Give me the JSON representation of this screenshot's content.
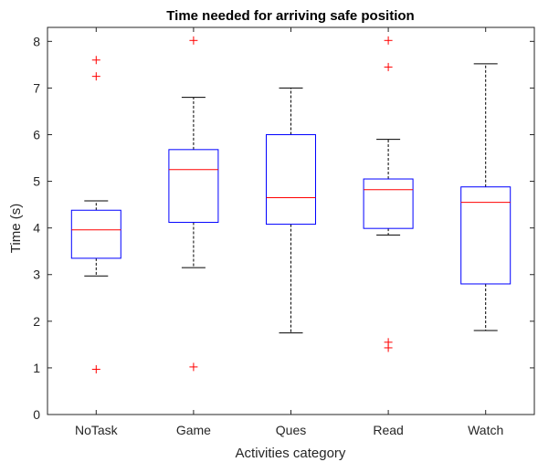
{
  "chart_data": {
    "type": "box",
    "title": "Time needed for arriving safe position",
    "xlabel": "Activities category",
    "ylabel": "Time (s)",
    "ylim": [
      0,
      8.3
    ],
    "yticks": [
      0,
      1,
      2,
      3,
      4,
      5,
      6,
      7,
      8
    ],
    "categories": [
      "NoTask",
      "Game",
      "Ques",
      "Read",
      "Watch"
    ],
    "boxes": [
      {
        "category": "NoTask",
        "whisker_low": 2.97,
        "q1": 3.35,
        "median": 3.96,
        "q3": 4.38,
        "whisker_high": 4.58,
        "outliers": [
          7.6,
          7.25,
          0.97
        ]
      },
      {
        "category": "Game",
        "whisker_low": 3.15,
        "q1": 4.12,
        "median": 5.25,
        "q3": 5.68,
        "whisker_high": 6.8,
        "outliers": [
          8.02,
          1.02
        ]
      },
      {
        "category": "Ques",
        "whisker_low": 1.75,
        "q1": 4.08,
        "median": 4.65,
        "q3": 6.0,
        "whisker_high": 7.0,
        "outliers": []
      },
      {
        "category": "Read",
        "whisker_low": 3.85,
        "q1": 3.99,
        "median": 4.82,
        "q3": 5.05,
        "whisker_high": 5.9,
        "outliers": [
          8.02,
          7.45,
          1.55,
          1.43
        ]
      },
      {
        "category": "Watch",
        "whisker_low": 1.8,
        "q1": 2.8,
        "median": 4.55,
        "q3": 4.88,
        "whisker_high": 7.52,
        "outliers": []
      }
    ],
    "colors": {
      "box": "#0000ff",
      "median": "#ff0000",
      "whisker": "#000000",
      "outlier": "#ff0000",
      "axis": "#262626"
    }
  }
}
